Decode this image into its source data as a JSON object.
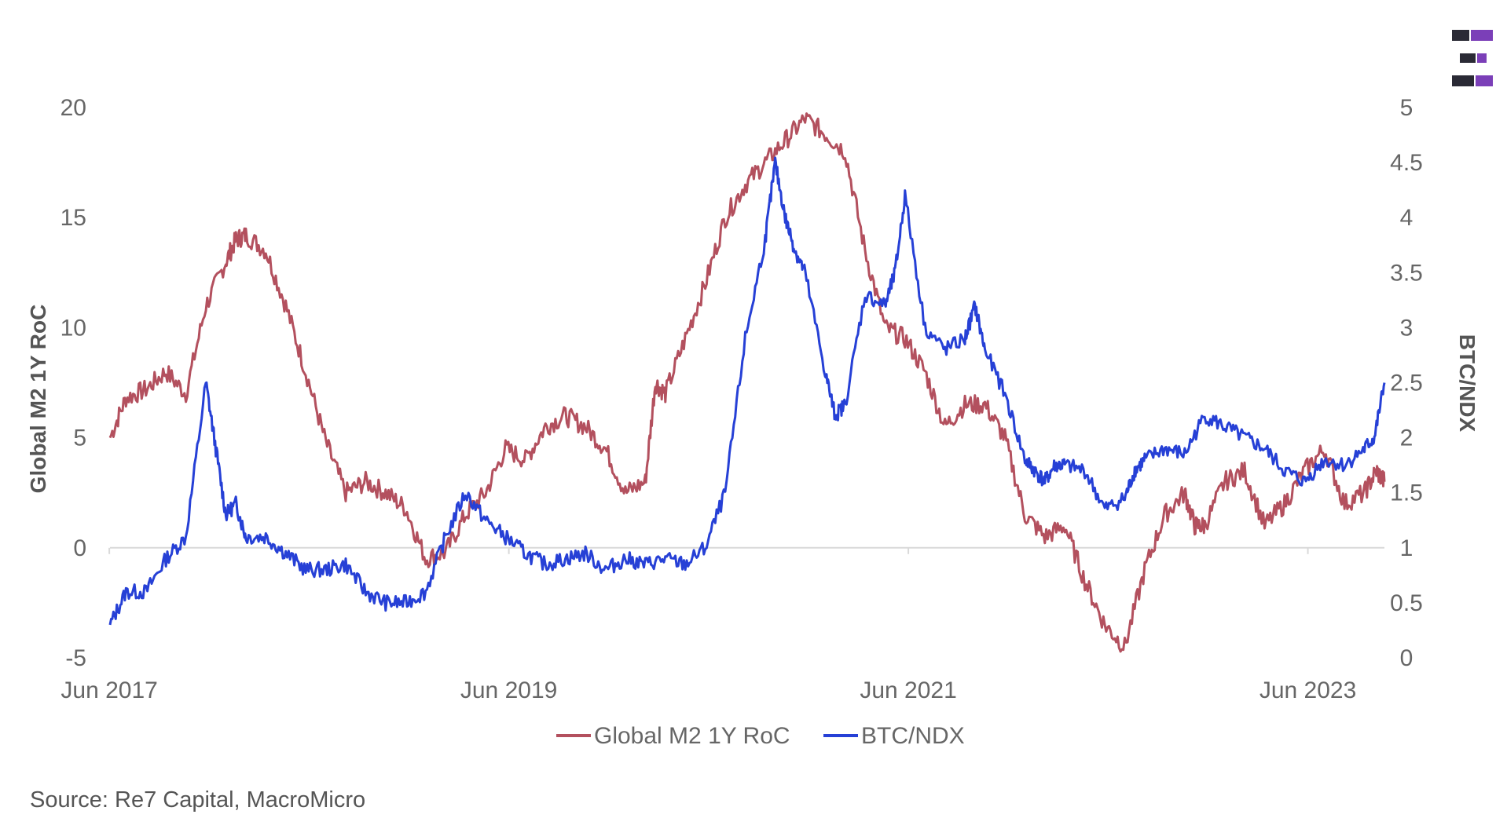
{
  "source_note": "Source: Re7 Capital, MacroMicro",
  "chart_data": {
    "type": "line",
    "title": "",
    "x_ticks": [
      "Jun 2017",
      "Jun 2019",
      "Jun 2021",
      "Jun 2023"
    ],
    "xlim": [
      2017.42,
      2023.8
    ],
    "y_left": {
      "label": "Global M2 1Y RoC",
      "lim": [
        -5,
        20
      ],
      "ticks": [
        "-5",
        "0",
        "5",
        "10",
        "15",
        "20"
      ]
    },
    "y_right": {
      "label": "BTC/NDX",
      "lim": [
        0,
        5
      ],
      "ticks": [
        "0",
        "0.5",
        "1",
        "1.5",
        "2",
        "2.5",
        "3",
        "3.5",
        "4",
        "4.5",
        "5"
      ]
    },
    "legend": {
      "placement": "bottom-center",
      "entries": [
        "Global M2 1Y RoC",
        "BTC/NDX"
      ]
    },
    "colors": {
      "m2": "#b3505e",
      "btc": "#2640d6",
      "logo_purple": "#7b3fb8",
      "logo_dark": "#2a2a35"
    },
    "series": [
      {
        "name": "Global M2 1Y RoC",
        "axis": "left",
        "x": [
          2017.42,
          2017.5,
          2017.6,
          2017.7,
          2017.8,
          2017.9,
          2018.0,
          2018.05,
          2018.1,
          2018.2,
          2018.3,
          2018.4,
          2018.5,
          2018.6,
          2018.7,
          2018.8,
          2018.9,
          2019.0,
          2019.1,
          2019.2,
          2019.3,
          2019.4,
          2019.5,
          2019.6,
          2019.7,
          2019.8,
          2019.9,
          2020.0,
          2020.1,
          2020.15,
          2020.2,
          2020.3,
          2020.4,
          2020.5,
          2020.6,
          2020.7,
          2020.8,
          2020.9,
          2021.0,
          2021.1,
          2021.2,
          2021.3,
          2021.4,
          2021.5,
          2021.6,
          2021.7,
          2021.8,
          2021.9,
          2022.0,
          2022.1,
          2022.2,
          2022.3,
          2022.4,
          2022.5,
          2022.6,
          2022.7,
          2022.8,
          2022.85,
          2022.9,
          2023.0,
          2023.1,
          2023.2,
          2023.3,
          2023.4,
          2023.5,
          2023.6,
          2023.7,
          2023.76,
          2023.8
        ],
        "values": [
          5.0,
          6.8,
          7.2,
          8.0,
          7.0,
          11.0,
          13.0,
          14.0,
          14.2,
          13.5,
          11.0,
          8.0,
          4.8,
          2.5,
          3.0,
          2.5,
          1.8,
          -0.5,
          -0.2,
          1.5,
          2.5,
          4.5,
          4.0,
          5.5,
          6.0,
          5.5,
          4.5,
          2.5,
          3.0,
          7.5,
          7.0,
          9.5,
          12.0,
          15.0,
          16.5,
          17.5,
          18.5,
          19.5,
          18.8,
          18.0,
          13.5,
          10.0,
          9.5,
          8.0,
          5.5,
          6.5,
          6.5,
          5.0,
          1.5,
          0.5,
          1.0,
          -1.5,
          -3.5,
          -4.5,
          -1.0,
          1.5,
          2.5,
          1.0,
          1.0,
          3.0,
          3.5,
          1.0,
          2.0,
          3.5,
          4.5,
          2.0,
          2.5,
          3.5,
          3.0
        ]
      },
      {
        "name": "BTC/NDX",
        "axis": "right",
        "x": [
          2017.42,
          2017.5,
          2017.6,
          2017.7,
          2017.8,
          2017.9,
          2017.95,
          2018.0,
          2018.05,
          2018.1,
          2018.2,
          2018.3,
          2018.4,
          2018.5,
          2018.6,
          2018.7,
          2018.8,
          2018.9,
          2019.0,
          2019.1,
          2019.2,
          2019.3,
          2019.4,
          2019.5,
          2019.6,
          2019.7,
          2019.8,
          2019.9,
          2020.0,
          2020.1,
          2020.2,
          2020.3,
          2020.4,
          2020.5,
          2020.6,
          2020.7,
          2020.75,
          2020.8,
          2020.85,
          2020.9,
          2021.0,
          2021.05,
          2021.1,
          2021.2,
          2021.3,
          2021.35,
          2021.4,
          2021.5,
          2021.6,
          2021.7,
          2021.75,
          2021.8,
          2021.9,
          2022.0,
          2022.05,
          2022.1,
          2022.15,
          2022.2,
          2022.3,
          2022.4,
          2022.5,
          2022.55,
          2022.6,
          2022.7,
          2022.8,
          2022.9,
          2023.0,
          2023.1,
          2023.2,
          2023.3,
          2023.4,
          2023.5,
          2023.6,
          2023.7,
          2023.75,
          2023.8
        ],
        "values": [
          0.3,
          0.6,
          0.6,
          0.9,
          1.1,
          2.5,
          1.9,
          1.3,
          1.4,
          1.1,
          1.1,
          0.95,
          0.8,
          0.8,
          0.85,
          0.6,
          0.5,
          0.5,
          0.6,
          1.1,
          1.5,
          1.25,
          1.1,
          0.95,
          0.85,
          0.9,
          0.95,
          0.8,
          0.9,
          0.85,
          0.9,
          0.85,
          1.0,
          1.5,
          2.9,
          3.8,
          4.5,
          4.0,
          3.7,
          3.5,
          2.6,
          2.2,
          2.3,
          3.3,
          3.2,
          3.5,
          4.2,
          3.0,
          2.8,
          2.9,
          3.2,
          2.8,
          2.4,
          1.8,
          1.7,
          1.6,
          1.75,
          1.75,
          1.7,
          1.35,
          1.45,
          1.7,
          1.8,
          1.9,
          1.85,
          2.2,
          2.1,
          2.0,
          1.9,
          1.7,
          1.6,
          1.8,
          1.75,
          1.9,
          2.0,
          2.5
        ]
      }
    ]
  }
}
